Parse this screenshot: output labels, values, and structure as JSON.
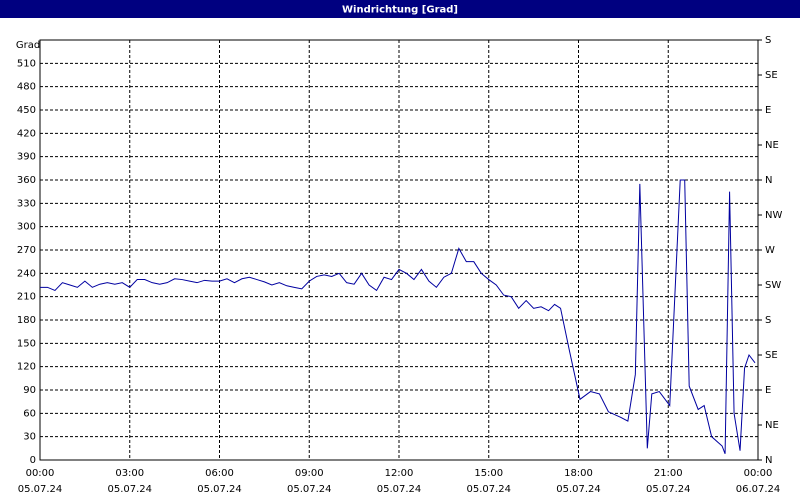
{
  "chart_data": {
    "type": "line",
    "title": "Windrichtung [Grad]",
    "y_label": "Grad",
    "x": [
      0,
      0.25,
      0.5,
      0.75,
      1,
      1.25,
      1.5,
      1.75,
      2,
      2.25,
      2.5,
      2.75,
      3,
      3.25,
      3.5,
      3.75,
      4,
      4.25,
      4.5,
      4.75,
      5,
      5.25,
      5.5,
      5.75,
      6,
      6.25,
      6.5,
      6.75,
      7,
      7.25,
      7.5,
      7.75,
      8,
      8.25,
      8.5,
      8.75,
      9,
      9.25,
      9.5,
      9.75,
      10,
      10.25,
      10.5,
      10.75,
      11,
      11.25,
      11.5,
      11.75,
      12,
      12.25,
      12.5,
      12.75,
      13,
      13.25,
      13.5,
      13.75,
      14,
      14.25,
      14.5,
      14.75,
      15,
      15.25,
      15.5,
      15.75,
      16,
      16.25,
      16.5,
      16.75,
      17,
      17.2,
      17.4,
      17.7,
      18.05,
      18.4,
      18.7,
      19,
      19.4,
      19.65,
      19.9,
      20.05,
      20.3,
      20.45,
      20.7,
      21.05,
      21.4,
      21.55,
      21.7,
      22,
      22.2,
      22.45,
      22.8,
      22.9,
      23.05,
      23.2,
      23.4,
      23.55,
      23.7,
      23.9
    ],
    "series": [
      {
        "name": "Windrichtung",
        "color": "#0000a0",
        "values": [
          222,
          222,
          218,
          228,
          225,
          222,
          230,
          222,
          226,
          228,
          226,
          228,
          222,
          232,
          232,
          228,
          226,
          228,
          233,
          232,
          230,
          228,
          231,
          230,
          230,
          233,
          228,
          233,
          235,
          232,
          229,
          225,
          228,
          224,
          222,
          220,
          230,
          236,
          238,
          236,
          240,
          228,
          226,
          240,
          225,
          218,
          235,
          232,
          245,
          240,
          232,
          245,
          230,
          222,
          235,
          240,
          272,
          255,
          255,
          240,
          232,
          225,
          212,
          210,
          195,
          205,
          195,
          197,
          192,
          200,
          195,
          140,
          78,
          88,
          85,
          62,
          55,
          50,
          110,
          355,
          15,
          85,
          88,
          70,
          360,
          360,
          95,
          65,
          70,
          30,
          18,
          8,
          345,
          60,
          12,
          118,
          135,
          125
        ]
      }
    ],
    "xlim": [
      0,
      24
    ],
    "xticks": [
      {
        "value": 0,
        "label": "00:00",
        "date": "05.07.24"
      },
      {
        "value": 3,
        "label": "03:00",
        "date": "05.07.24"
      },
      {
        "value": 6,
        "label": "06:00",
        "date": "05.07.24"
      },
      {
        "value": 9,
        "label": "09:00",
        "date": "05.07.24"
      },
      {
        "value": 12,
        "label": "12:00",
        "date": "05.07.24"
      },
      {
        "value": 15,
        "label": "15:00",
        "date": "05.07.24"
      },
      {
        "value": 18,
        "label": "18:00",
        "date": "05.07.24"
      },
      {
        "value": 21,
        "label": "21:00",
        "date": "05.07.24"
      },
      {
        "value": 24,
        "label": "00:00",
        "date": "06.07.24"
      }
    ],
    "ylim": [
      0,
      540
    ],
    "yticks": [
      0,
      30,
      60,
      90,
      120,
      150,
      180,
      210,
      240,
      270,
      300,
      330,
      360,
      390,
      420,
      450,
      480,
      510
    ],
    "y2lim": [
      0,
      540
    ],
    "y2ticks": [
      {
        "value": 0,
        "label": "N"
      },
      {
        "value": 45,
        "label": "NE"
      },
      {
        "value": 90,
        "label": "E"
      },
      {
        "value": 135,
        "label": "SE"
      },
      {
        "value": 180,
        "label": "S"
      },
      {
        "value": 225,
        "label": "SW"
      },
      {
        "value": 270,
        "label": "W"
      },
      {
        "value": 315,
        "label": "NW"
      },
      {
        "value": 360,
        "label": "N"
      },
      {
        "value": 405,
        "label": "NE"
      },
      {
        "value": 450,
        "label": "E"
      },
      {
        "value": 495,
        "label": "SE"
      },
      {
        "value": 540,
        "label": "S"
      }
    ],
    "grid": true
  }
}
